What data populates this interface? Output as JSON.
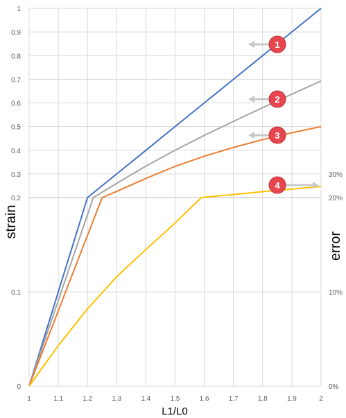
{
  "chart_data": {
    "type": "line",
    "title": "",
    "xlabel": "L1/L0",
    "ylabel_left": "strain",
    "ylabel_right": "error",
    "x_ticks": [
      "1",
      "1.1",
      "1.2",
      "1.3",
      "1.4",
      "1.5",
      "1.6",
      "1.7",
      "1.8",
      "1.9",
      "2"
    ],
    "xlim": [
      1,
      2
    ],
    "y_ticks_left": [
      {
        "label": "0",
        "value": 0
      },
      {
        "label": "0.1",
        "value": 0.1
      },
      {
        "label": "0.2",
        "value": 0.2
      },
      {
        "label": "0.3",
        "value": 0.3
      },
      {
        "label": "0.4",
        "value": 0.4
      },
      {
        "label": "0.5",
        "value": 0.5
      },
      {
        "label": "0.6",
        "value": 0.6
      },
      {
        "label": "0.7",
        "value": 0.7
      },
      {
        "label": "0.8",
        "value": 0.8
      },
      {
        "label": "0.9",
        "value": 0.9
      },
      {
        "label": "1",
        "value": 1
      }
    ],
    "y_scale_note": "piecewise: 0 to 0.2 occupies lower section, 0.2 to 1 linear upper section",
    "y_ticks_right": [
      {
        "label": "0%",
        "value": 0
      },
      {
        "label": "10%",
        "value": 0.1
      },
      {
        "label": "20%",
        "value": 0.2
      },
      {
        "label": "30%",
        "value": 0.3
      }
    ],
    "grid": true,
    "series": [
      {
        "color": "#4472C4",
        "axis": "left",
        "x": [
          1,
          1.2,
          1.3,
          1.4,
          1.5,
          1.6,
          1.7,
          1.8,
          1.9,
          2
        ],
        "y": [
          0,
          0.2,
          0.3,
          0.4,
          0.5,
          0.6,
          0.7,
          0.8,
          0.9,
          1.0
        ]
      },
      {
        "color": "#A5A5A5",
        "axis": "left",
        "x": [
          1,
          1.22,
          1.3,
          1.4,
          1.5,
          1.6,
          1.7,
          1.8,
          1.9,
          2
        ],
        "y": [
          0,
          0.2,
          0.26,
          0.333,
          0.4,
          0.463,
          0.522,
          0.58,
          0.637,
          0.693
        ]
      },
      {
        "color": "#ED7D31",
        "axis": "left",
        "x": [
          1,
          1.25,
          1.3,
          1.4,
          1.5,
          1.6,
          1.7,
          1.8,
          1.9,
          2
        ],
        "y": [
          0,
          0.2,
          0.226,
          0.281,
          0.332,
          0.375,
          0.412,
          0.445,
          0.474,
          0.5
        ]
      },
      {
        "color": "#FFC000",
        "axis": "mixed",
        "x": [
          1,
          1.1,
          1.2,
          1.3,
          1.4,
          1.5,
          1.59,
          1.7,
          1.8,
          1.9,
          2
        ],
        "y": [
          0,
          0.043,
          0.082,
          0.116,
          0.145,
          0.173,
          0.2,
          0.213,
          0.225,
          0.236,
          0.247
        ]
      }
    ],
    "markers": [
      {
        "label": "1",
        "arrow": "left"
      },
      {
        "label": "2",
        "arrow": "left"
      },
      {
        "label": "3",
        "arrow": "left"
      },
      {
        "label": "4",
        "arrow": "right"
      }
    ]
  }
}
